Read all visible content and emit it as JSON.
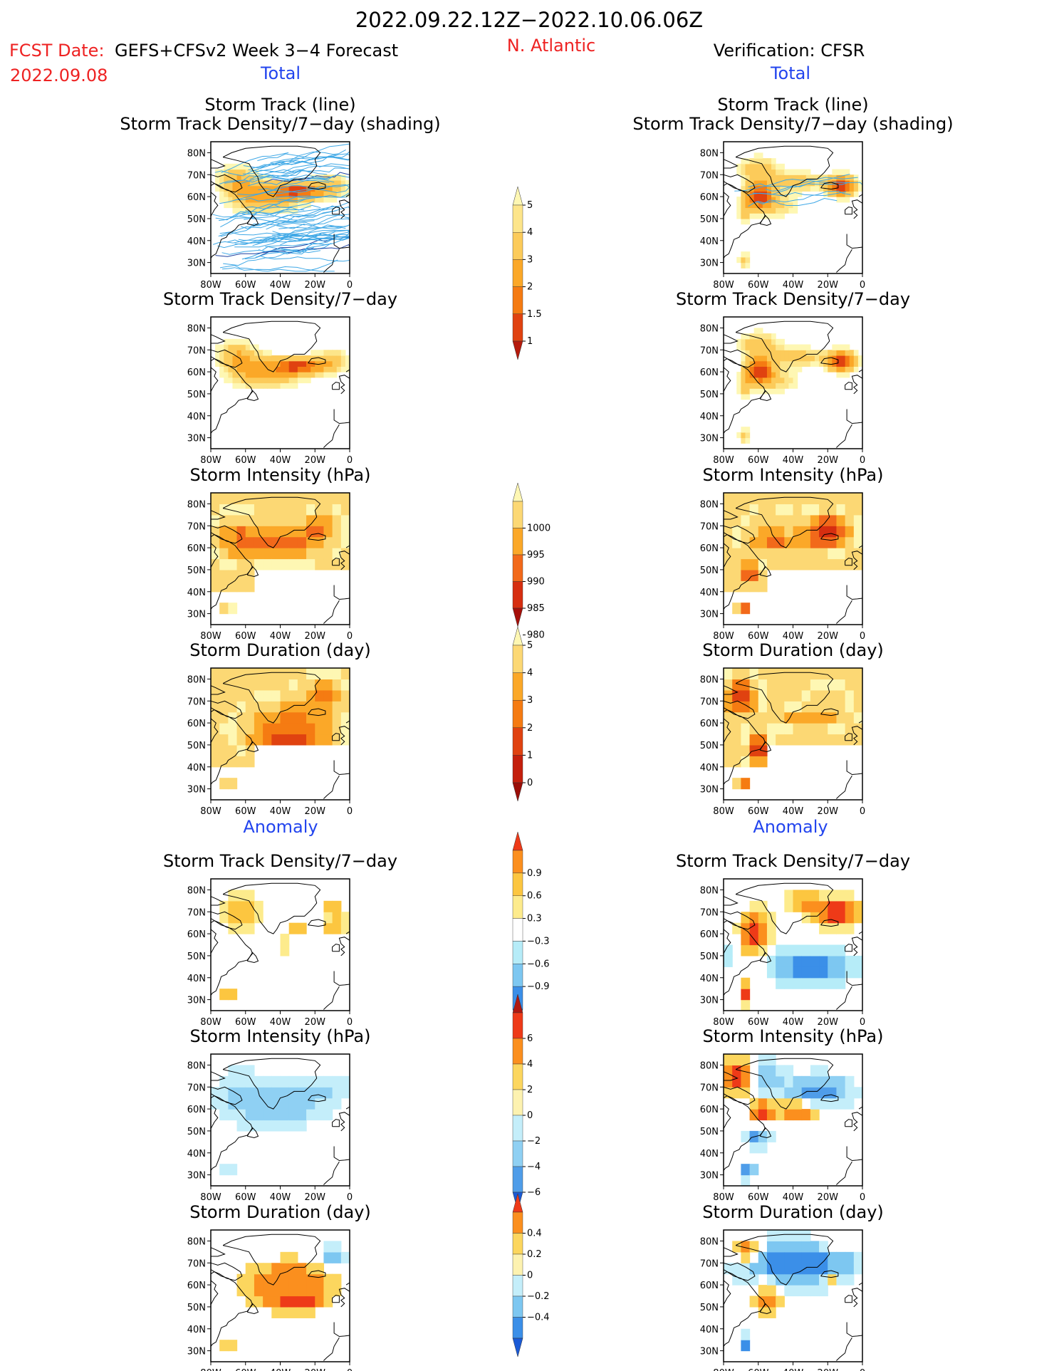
{
  "header": {
    "title": "2022.09.22.12Z−2022.10.06.06Z",
    "fcst_label": "FCST Date:",
    "fcst_model": "GEFS+CFSv2 Week 3−4 Forecast",
    "fcst_date": "2022.09.08",
    "region": "N. Atlantic",
    "verification": "Verification: CFSR",
    "left_total": "Total",
    "right_total": "Total",
    "left_anomaly": "Anomaly",
    "right_anomaly": "Anomaly"
  },
  "colors": {
    "red_text": "#ee2222",
    "blue_text": "#2244ee",
    "track_line": "#3fa8e6",
    "dark_track": "#1c3fa0",
    "coast": "#000000"
  },
  "axes": {
    "lon_ticks": [
      "80W",
      "60W",
      "40W",
      "20W",
      "0"
    ],
    "lat_ticks": [
      "80N",
      "70N",
      "60N",
      "50N",
      "40N",
      "30N"
    ]
  },
  "panels": [
    {
      "col": "left",
      "title1": "Storm Track (line)",
      "title2": "Storm Track Density/7−day (shading)",
      "field": "density",
      "tracks": "many"
    },
    {
      "col": "right",
      "title1": "Storm Track (line)",
      "title2": "Storm Track Density/7−day (shading)",
      "field": "density",
      "tracks": "few"
    },
    {
      "col": "left",
      "title1": "",
      "title2": "Storm Track Density/7−day",
      "field": "density"
    },
    {
      "col": "right",
      "title1": "",
      "title2": "Storm Track Density/7−day",
      "field": "density"
    },
    {
      "col": "left",
      "title1": "",
      "title2": "Storm Intensity (hPa)",
      "field": "intensity"
    },
    {
      "col": "right",
      "title1": "",
      "title2": "Storm Intensity (hPa)",
      "field": "intensity"
    },
    {
      "col": "left",
      "title1": "",
      "title2": "Storm Duration (day)",
      "field": "duration"
    },
    {
      "col": "right",
      "title1": "",
      "title2": "Storm Duration (day)",
      "field": "duration"
    },
    {
      "col": "left",
      "title1": "",
      "title2": "Storm Track Density/7−day",
      "field": "anom_density"
    },
    {
      "col": "right",
      "title1": "",
      "title2": "Storm Track Density/7−day",
      "field": "anom_density"
    },
    {
      "col": "left",
      "title1": "",
      "title2": "Storm Intensity (hPa)",
      "field": "anom_intensity"
    },
    {
      "col": "right",
      "title1": "",
      "title2": "Storm Intensity (hPa)",
      "field": "anom_intensity"
    },
    {
      "col": "left",
      "title1": "",
      "title2": "Storm Duration (day)",
      "field": "anom_duration"
    },
    {
      "col": "right",
      "title1": "",
      "title2": "Storm Duration (day)",
      "field": "anom_duration"
    }
  ],
  "colorbars": [
    {
      "name": "density",
      "labels": [
        "1",
        "1.5",
        "2",
        "3",
        "4",
        "5"
      ],
      "colors": [
        "#fef7b3",
        "#fde58a",
        "#fccb5a",
        "#fba828",
        "#f57b12",
        "#e04210",
        "#b61a0c"
      ]
    },
    {
      "name": "intensity",
      "labels": [
        "1000",
        "995",
        "990",
        "985",
        "980"
      ],
      "colors": [
        "#fef7b3",
        "#fcd874",
        "#fba828",
        "#f2691a",
        "#d62e10",
        "#a60f0a"
      ]
    },
    {
      "name": "duration",
      "labels": [
        "0",
        "1",
        "2",
        "3",
        "4",
        "5"
      ],
      "colors": [
        "#fef7b3",
        "#fcd874",
        "#fba828",
        "#f57b12",
        "#e04210",
        "#c41f0c",
        "#9b0e08"
      ]
    },
    {
      "name": "anom_density",
      "labels": [
        "0.9",
        "0.6",
        "0.3",
        "−0.3",
        "−0.6",
        "−0.9"
      ],
      "colors": [
        "#ee3a18",
        "#fb8f1e",
        "#fcc640",
        "#fdeb8c",
        "#ffffff",
        "#b6ecf8",
        "#7dc7f1",
        "#3b8fe8",
        "#1a5ad6"
      ]
    },
    {
      "name": "anom_intensity",
      "labels": [
        "6",
        "4",
        "2",
        "0",
        "−2",
        "−4",
        "−6"
      ],
      "colors": [
        "#b01810",
        "#ee3a18",
        "#fb8f1e",
        "#fcd65e",
        "#fdf2b0",
        "#c4eefa",
        "#8fd0f3",
        "#4f9de9",
        "#1a5ad6"
      ]
    },
    {
      "name": "anom_duration",
      "labels": [
        "0.4",
        "0.2",
        "0",
        "−0.2",
        "−0.4"
      ],
      "colors": [
        "#ee3a18",
        "#fb8f1e",
        "#fcd65e",
        "#fdf2b0",
        "#c4eefa",
        "#7dc7f1",
        "#3b8fe8",
        "#1a5ad6"
      ]
    }
  ],
  "chart_data": [
    {
      "type": "heatmap",
      "title": "Storm Track (line) / Storm Track Density/7-day (shading)",
      "column": "GEFS+CFSv2 Week 3-4 Forecast, Total",
      "region": "N. Atlantic",
      "lon_range": [
        "80W",
        "0"
      ],
      "lat_range": [
        "25N",
        "85N"
      ],
      "colorbar_levels": [
        1,
        1.5,
        2,
        3,
        4,
        5
      ],
      "max_center": {
        "lon": "30W",
        "lat": "63N"
      },
      "tracks": "many"
    },
    {
      "type": "heatmap",
      "title": "Storm Track (line) / Storm Track Density/7-day (shading)",
      "column": "Verification: CFSR, Total",
      "region": "N. Atlantic",
      "lon_range": [
        "80W",
        "0"
      ],
      "lat_range": [
        "25N",
        "85N"
      ],
      "colorbar_levels": [
        1,
        1.5,
        2,
        3,
        4,
        5
      ],
      "max_centers": [
        {
          "lon": "60W",
          "lat": "62N"
        },
        {
          "lon": "15W",
          "lat": "65N"
        }
      ],
      "tracks": "few"
    },
    {
      "type": "heatmap",
      "title": "Storm Track Density/7-day",
      "column": "Forecast Total",
      "colorbar_levels": [
        1,
        1.5,
        2,
        3,
        4,
        5
      ]
    },
    {
      "type": "heatmap",
      "title": "Storm Track Density/7-day",
      "column": "CFSR Total",
      "colorbar_levels": [
        1,
        1.5,
        2,
        3,
        4,
        5
      ]
    },
    {
      "type": "heatmap",
      "title": "Storm Intensity (hPa)",
      "column": "Forecast Total",
      "colorbar_levels": [
        1000,
        995,
        990,
        985,
        980
      ]
    },
    {
      "type": "heatmap",
      "title": "Storm Intensity (hPa)",
      "column": "CFSR Total",
      "colorbar_levels": [
        1000,
        995,
        990,
        985,
        980
      ]
    },
    {
      "type": "heatmap",
      "title": "Storm Duration (day)",
      "column": "Forecast Total",
      "colorbar_levels": [
        0,
        1,
        2,
        3,
        4,
        5
      ]
    },
    {
      "type": "heatmap",
      "title": "Storm Duration (day)",
      "column": "CFSR Total",
      "colorbar_levels": [
        0,
        1,
        2,
        3,
        4,
        5
      ]
    },
    {
      "type": "heatmap",
      "title": "Storm Track Density/7-day",
      "column": "Forecast Anomaly",
      "colorbar_levels": [
        0.9,
        0.6,
        0.3,
        -0.3,
        -0.6,
        -0.9
      ]
    },
    {
      "type": "heatmap",
      "title": "Storm Track Density/7-day",
      "column": "CFSR Anomaly",
      "colorbar_levels": [
        0.9,
        0.6,
        0.3,
        -0.3,
        -0.6,
        -0.9
      ]
    },
    {
      "type": "heatmap",
      "title": "Storm Intensity (hPa)",
      "column": "Forecast Anomaly",
      "colorbar_levels": [
        6,
        4,
        2,
        0,
        -2,
        -4,
        -6
      ]
    },
    {
      "type": "heatmap",
      "title": "Storm Intensity (hPa)",
      "column": "CFSR Anomaly",
      "colorbar_levels": [
        6,
        4,
        2,
        0,
        -2,
        -4,
        -6
      ]
    },
    {
      "type": "heatmap",
      "title": "Storm Duration (day)",
      "column": "Forecast Anomaly",
      "colorbar_levels": [
        0.4,
        0.2,
        0,
        -0.2,
        -0.4
      ]
    },
    {
      "type": "heatmap",
      "title": "Storm Duration (day)",
      "column": "CFSR Anomaly",
      "colorbar_levels": [
        0.4,
        0.2,
        0,
        -0.2,
        -0.4
      ]
    }
  ]
}
